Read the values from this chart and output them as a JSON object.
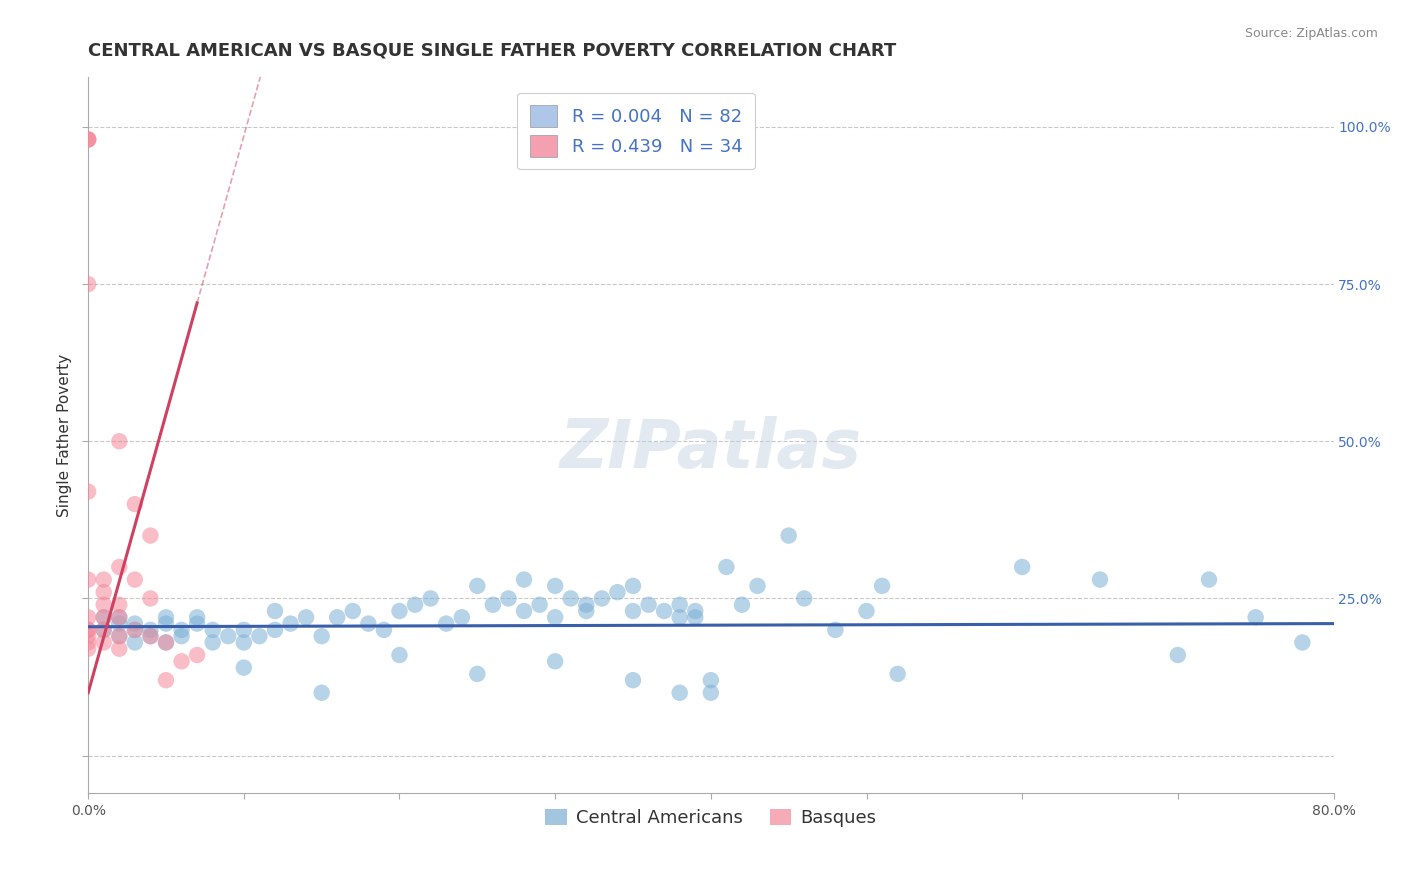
{
  "title": "CENTRAL AMERICAN VS BASQUE SINGLE FATHER POVERTY CORRELATION CHART",
  "source_text": "Source: ZipAtlas.com",
  "ylabel": "Single Father Poverty",
  "xlim": [
    0.0,
    0.8
  ],
  "ylim": [
    -0.06,
    1.08
  ],
  "ytick_positions": [
    0.0,
    0.25,
    0.5,
    0.75,
    1.0
  ],
  "xtick_positions": [
    0.0,
    0.1,
    0.2,
    0.3,
    0.4,
    0.5,
    0.6,
    0.7,
    0.8
  ],
  "legend_entries": [
    {
      "label": "R = 0.004   N = 82",
      "color": "#aec6e8"
    },
    {
      "label": "R = 0.439   N = 34",
      "color": "#f4a0b0"
    }
  ],
  "legend_bottom_labels": [
    "Central Americans",
    "Basques"
  ],
  "blue_scatter_color": "#7bafd4",
  "pink_scatter_color": "#f48898",
  "blue_line_color": "#3a5faa",
  "pink_line_color": "#d04060",
  "background_color": "#ffffff",
  "grid_color": "#c8c8c8",
  "watermark_text": "ZIPatlas",
  "blue_x": [
    0.01,
    0.01,
    0.02,
    0.02,
    0.02,
    0.03,
    0.03,
    0.03,
    0.04,
    0.04,
    0.05,
    0.05,
    0.05,
    0.06,
    0.06,
    0.07,
    0.07,
    0.08,
    0.08,
    0.09,
    0.1,
    0.1,
    0.11,
    0.12,
    0.12,
    0.13,
    0.14,
    0.15,
    0.16,
    0.17,
    0.18,
    0.19,
    0.2,
    0.21,
    0.22,
    0.23,
    0.24,
    0.25,
    0.26,
    0.27,
    0.28,
    0.28,
    0.29,
    0.3,
    0.3,
    0.31,
    0.32,
    0.32,
    0.33,
    0.34,
    0.35,
    0.35,
    0.36,
    0.37,
    0.38,
    0.38,
    0.39,
    0.39,
    0.4,
    0.41,
    0.42,
    0.43,
    0.45,
    0.46,
    0.48,
    0.5,
    0.51,
    0.52,
    0.6,
    0.65,
    0.7,
    0.72,
    0.75,
    0.78,
    0.1,
    0.15,
    0.2,
    0.25,
    0.3,
    0.35,
    0.38,
    0.4
  ],
  "blue_y": [
    0.2,
    0.22,
    0.19,
    0.21,
    0.22,
    0.18,
    0.2,
    0.21,
    0.19,
    0.2,
    0.21,
    0.22,
    0.18,
    0.2,
    0.19,
    0.21,
    0.22,
    0.18,
    0.2,
    0.19,
    0.18,
    0.2,
    0.19,
    0.23,
    0.2,
    0.21,
    0.22,
    0.19,
    0.22,
    0.23,
    0.21,
    0.2,
    0.23,
    0.24,
    0.25,
    0.21,
    0.22,
    0.27,
    0.24,
    0.25,
    0.28,
    0.23,
    0.24,
    0.22,
    0.27,
    0.25,
    0.23,
    0.24,
    0.25,
    0.26,
    0.23,
    0.27,
    0.24,
    0.23,
    0.22,
    0.24,
    0.23,
    0.22,
    0.12,
    0.3,
    0.24,
    0.27,
    0.35,
    0.25,
    0.2,
    0.23,
    0.27,
    0.13,
    0.3,
    0.28,
    0.16,
    0.28,
    0.22,
    0.18,
    0.14,
    0.1,
    0.16,
    0.13,
    0.15,
    0.12,
    0.1,
    0.1
  ],
  "pink_x": [
    0.0,
    0.0,
    0.0,
    0.0,
    0.0,
    0.0,
    0.0,
    0.0,
    0.0,
    0.0,
    0.0,
    0.0,
    0.01,
    0.01,
    0.01,
    0.01,
    0.01,
    0.01,
    0.02,
    0.02,
    0.02,
    0.02,
    0.02,
    0.03,
    0.03,
    0.04,
    0.04,
    0.05,
    0.05,
    0.06,
    0.07,
    0.02,
    0.03,
    0.04
  ],
  "pink_y": [
    0.98,
    0.98,
    0.98,
    0.75,
    0.42,
    0.28,
    0.22,
    0.2,
    0.19,
    0.18,
    0.17,
    0.2,
    0.28,
    0.26,
    0.24,
    0.22,
    0.2,
    0.18,
    0.3,
    0.24,
    0.22,
    0.19,
    0.17,
    0.28,
    0.2,
    0.25,
    0.19,
    0.18,
    0.12,
    0.15,
    0.16,
    0.5,
    0.4,
    0.35
  ],
  "pink_line_x": [
    0.0,
    0.07
  ],
  "pink_line_y_start": 0.1,
  "pink_line_y_end": 0.72,
  "title_fontsize": 13,
  "axis_label_fontsize": 11,
  "tick_fontsize": 10,
  "legend_fontsize": 13,
  "watermark_fontsize": 48
}
